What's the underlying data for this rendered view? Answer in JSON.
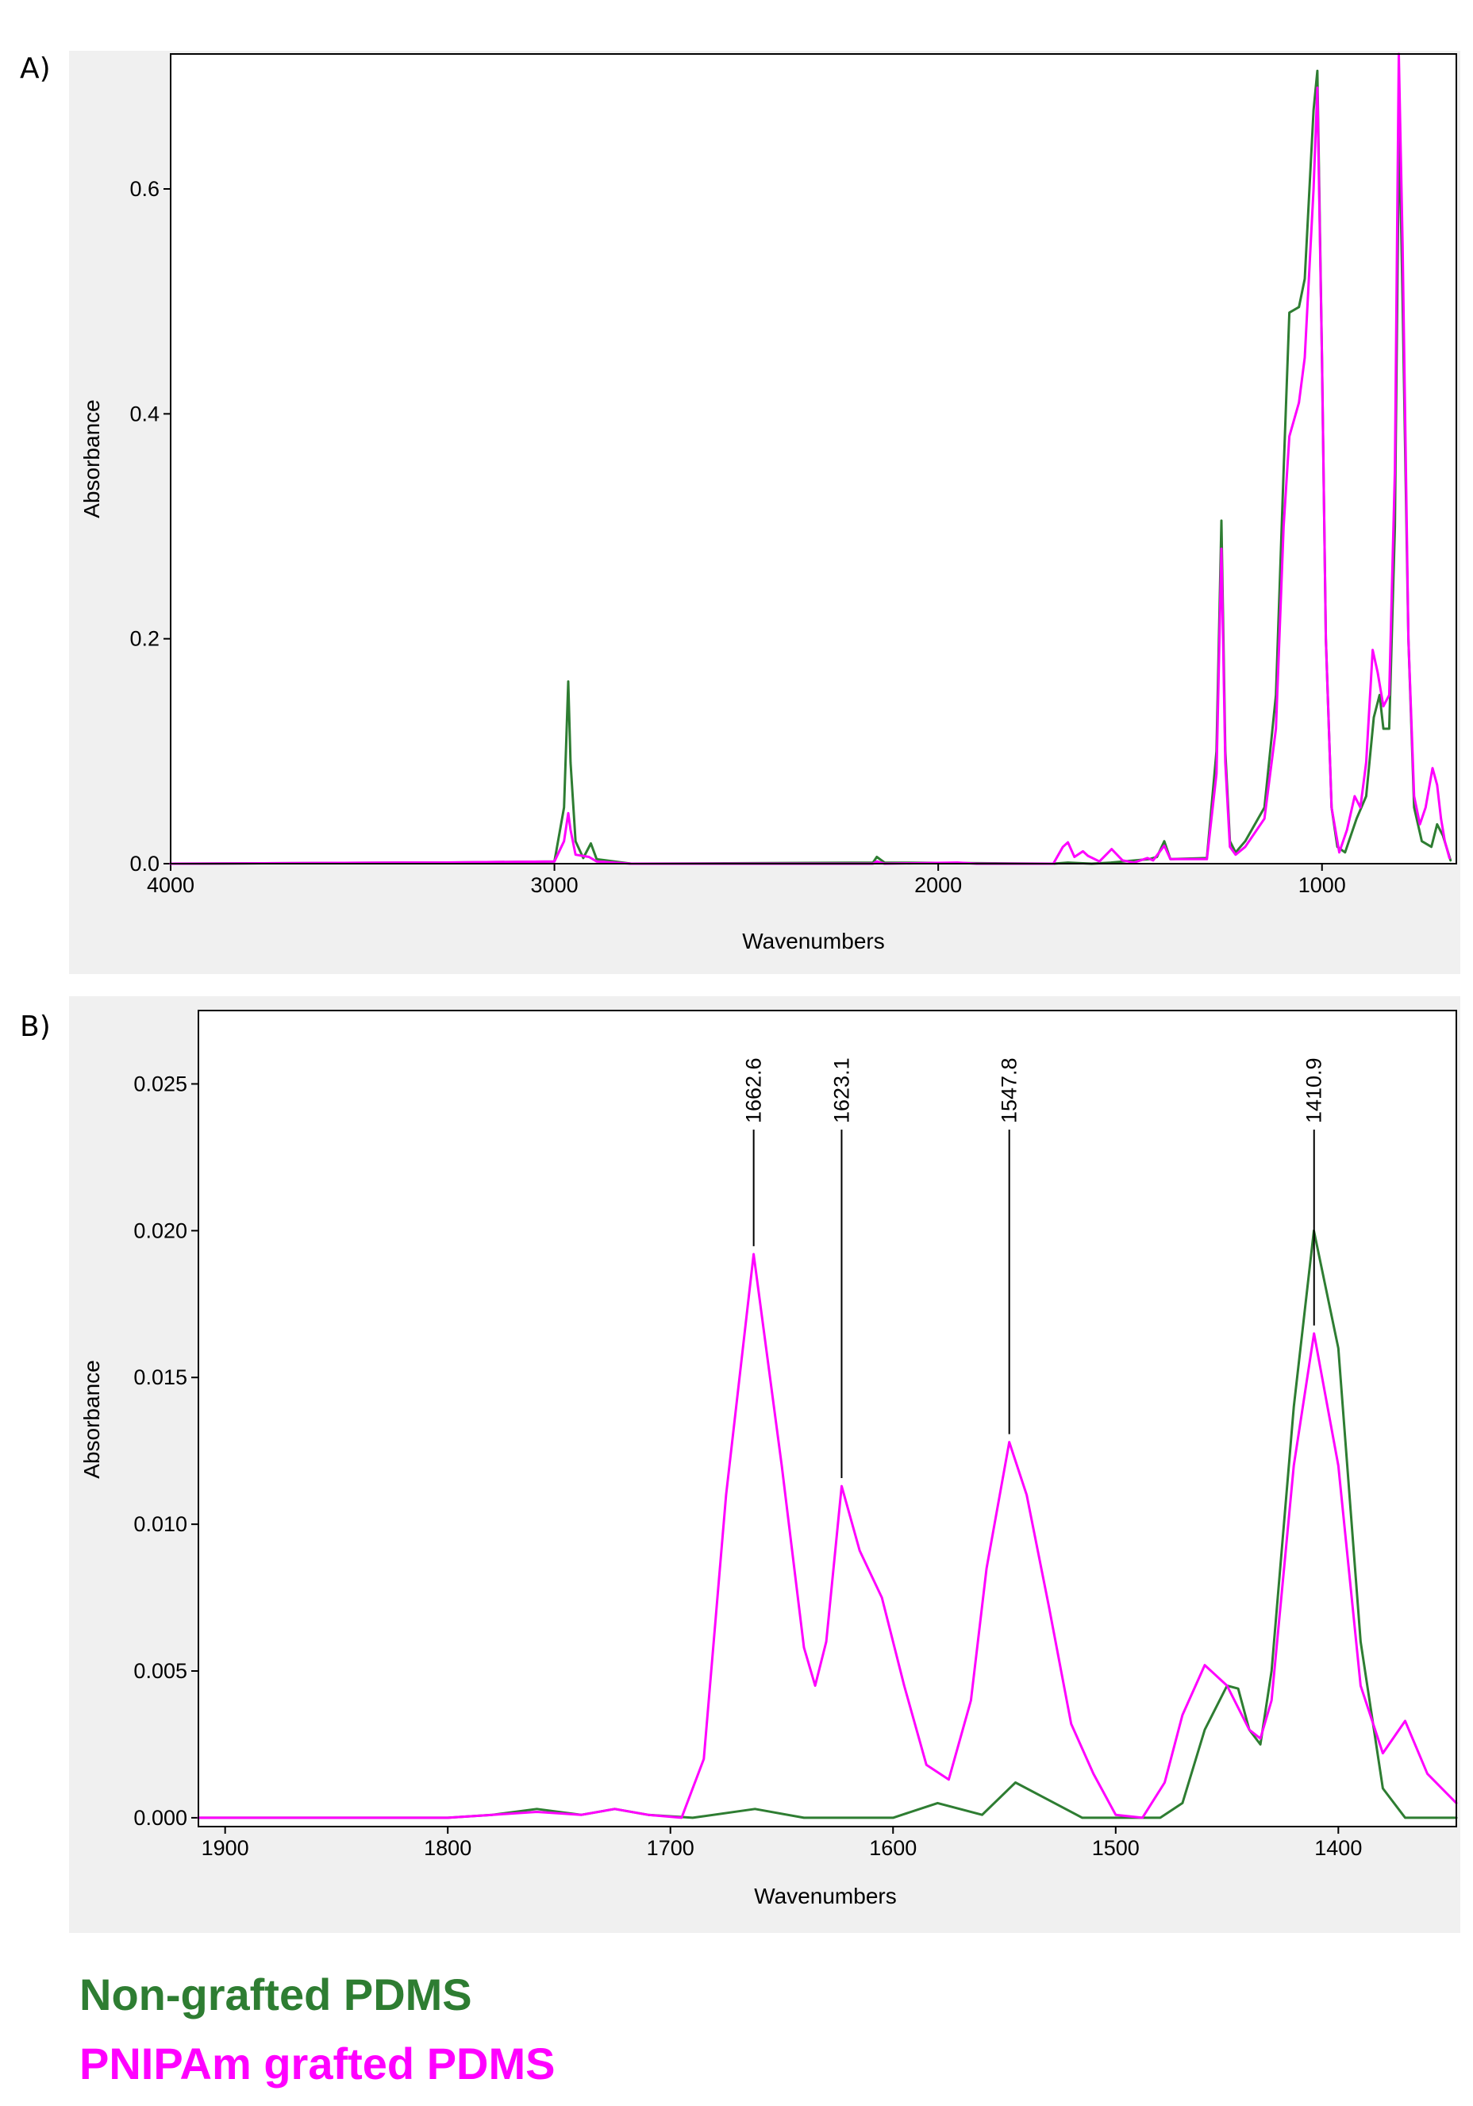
{
  "colors": {
    "non_grafted": "#2e7d32",
    "grafted": "#ff00ff",
    "panel_bg": "#f0f0f0",
    "plot_bg": "#ffffff"
  },
  "legend": {
    "series1": "Non-grafted PDMS",
    "series2": "PNIPAm grafted PDMS"
  },
  "chart_data": [
    {
      "panel": "A)",
      "type": "line",
      "xlabel": "Wavenumbers",
      "ylabel": "Absorbance",
      "xlim": [
        4000,
        650
      ],
      "ylim": [
        0,
        0.72
      ],
      "x_reversed": true,
      "xticks": [
        "4000",
        "3000",
        "2000",
        "1000"
      ],
      "xtick_values": [
        4000,
        3000,
        2000,
        1000
      ],
      "yticks": [
        "0.0",
        "0.2",
        "0.4",
        "0.6"
      ],
      "ytick_values": [
        0,
        0.2,
        0.4,
        0.6
      ],
      "series": [
        {
          "name": "Non-grafted PDMS",
          "points": [
            [
              4000,
              0
            ],
            [
              3360,
              0.001
            ],
            [
              3300,
              0.001
            ],
            [
              3000,
              0.002
            ],
            [
              2975,
              0.05
            ],
            [
              2964,
              0.162
            ],
            [
              2958,
              0.09
            ],
            [
              2945,
              0.02
            ],
            [
              2925,
              0.005
            ],
            [
              2905,
              0.018
            ],
            [
              2890,
              0.004
            ],
            [
              2800,
              0
            ],
            [
              2170,
              0.001
            ],
            [
              2160,
              0.006
            ],
            [
              2140,
              0.001
            ],
            [
              1700,
              0
            ],
            [
              1662,
              0.001
            ],
            [
              1600,
              0
            ],
            [
              1550,
              0.001
            ],
            [
              1450,
              0.004
            ],
            [
              1430,
              0.006
            ],
            [
              1411,
              0.02
            ],
            [
              1395,
              0.004
            ],
            [
              1300,
              0.005
            ],
            [
              1275,
              0.1
            ],
            [
              1262,
              0.305
            ],
            [
              1252,
              0.1
            ],
            [
              1240,
              0.02
            ],
            [
              1225,
              0.01
            ],
            [
              1200,
              0.02
            ],
            [
              1150,
              0.05
            ],
            [
              1120,
              0.15
            ],
            [
              1100,
              0.35
            ],
            [
              1085,
              0.49
            ],
            [
              1060,
              0.495
            ],
            [
              1045,
              0.52
            ],
            [
              1022,
              0.67
            ],
            [
              1012,
              0.705
            ],
            [
              1000,
              0.45
            ],
            [
              990,
              0.2
            ],
            [
              975,
              0.05
            ],
            [
              960,
              0.015
            ],
            [
              940,
              0.01
            ],
            [
              910,
              0.04
            ],
            [
              885,
              0.06
            ],
            [
              865,
              0.13
            ],
            [
              850,
              0.15
            ],
            [
              840,
              0.12
            ],
            [
              825,
              0.12
            ],
            [
              810,
              0.3
            ],
            [
              799,
              0.66
            ],
            [
              790,
              0.5
            ],
            [
              775,
              0.2
            ],
            [
              760,
              0.05
            ],
            [
              740,
              0.02
            ],
            [
              715,
              0.015
            ],
            [
              700,
              0.035
            ],
            [
              685,
              0.025
            ],
            [
              665,
              0.003
            ]
          ]
        },
        {
          "name": "PNIPAm grafted PDMS",
          "points": [
            [
              4000,
              0
            ],
            [
              3360,
              0.001
            ],
            [
              3300,
              0.001
            ],
            [
              3000,
              0.002
            ],
            [
              2975,
              0.02
            ],
            [
              2964,
              0.045
            ],
            [
              2958,
              0.03
            ],
            [
              2945,
              0.008
            ],
            [
              2910,
              0.006
            ],
            [
              2890,
              0.002
            ],
            [
              2800,
              0
            ],
            [
              2170,
              0
            ],
            [
              2160,
              0.002
            ],
            [
              2140,
              0
            ],
            [
              1950,
              0.001
            ],
            [
              1900,
              0
            ],
            [
              1700,
              0
            ],
            [
              1675,
              0.015
            ],
            [
              1662,
              0.019
            ],
            [
              1645,
              0.006
            ],
            [
              1623,
              0.011
            ],
            [
              1610,
              0.007
            ],
            [
              1580,
              0.002
            ],
            [
              1548,
              0.013
            ],
            [
              1520,
              0.003
            ],
            [
              1490,
              0.001
            ],
            [
              1455,
              0.005
            ],
            [
              1440,
              0.003
            ],
            [
              1411,
              0.016
            ],
            [
              1395,
              0.004
            ],
            [
              1300,
              0.004
            ],
            [
              1275,
              0.08
            ],
            [
              1262,
              0.28
            ],
            [
              1252,
              0.09
            ],
            [
              1240,
              0.015
            ],
            [
              1225,
              0.008
            ],
            [
              1200,
              0.015
            ],
            [
              1150,
              0.04
            ],
            [
              1120,
              0.12
            ],
            [
              1100,
              0.3
            ],
            [
              1085,
              0.38
            ],
            [
              1060,
              0.41
            ],
            [
              1045,
              0.45
            ],
            [
              1022,
              0.6
            ],
            [
              1012,
              0.69
            ],
            [
              1000,
              0.45
            ],
            [
              990,
              0.2
            ],
            [
              975,
              0.05
            ],
            [
              955,
              0.01
            ],
            [
              935,
              0.03
            ],
            [
              915,
              0.06
            ],
            [
              900,
              0.05
            ],
            [
              885,
              0.09
            ],
            [
              868,
              0.19
            ],
            [
              855,
              0.17
            ],
            [
              840,
              0.14
            ],
            [
              825,
              0.15
            ],
            [
              810,
              0.35
            ],
            [
              800,
              0.72
            ],
            [
              790,
              0.55
            ],
            [
              775,
              0.2
            ],
            [
              760,
              0.06
            ],
            [
              745,
              0.035
            ],
            [
              730,
              0.05
            ],
            [
              712,
              0.085
            ],
            [
              700,
              0.07
            ],
            [
              690,
              0.04
            ],
            [
              680,
              0.02
            ],
            [
              668,
              0.005
            ]
          ]
        }
      ]
    },
    {
      "panel": "B)",
      "type": "line",
      "xlabel": "Wavenumbers",
      "ylabel": "Absorbance",
      "xlim": [
        1912,
        1347
      ],
      "ylim": [
        -0.0003,
        0.0275
      ],
      "x_reversed": true,
      "xticks": [
        "1900",
        "1800",
        "1700",
        "1600",
        "1500",
        "1400"
      ],
      "xtick_values": [
        1900,
        1800,
        1700,
        1600,
        1500,
        1400
      ],
      "yticks": [
        "0.000",
        "0.005",
        "0.010",
        "0.015",
        "0.020",
        "0.025"
      ],
      "ytick_values": [
        0,
        0.005,
        0.01,
        0.015,
        0.02,
        0.025
      ],
      "annotations": [
        {
          "label": "1662.6",
          "x": 1662.6,
          "peak": 0.0192
        },
        {
          "label": "1623.1",
          "x": 1623.1,
          "peak": 0.0113
        },
        {
          "label": "1547.8",
          "x": 1547.8,
          "peak": 0.0128
        },
        {
          "label": "1410.9",
          "x": 1410.9,
          "peak": 0.0165
        }
      ],
      "series": [
        {
          "name": "Non-grafted PDMS",
          "points": [
            [
              1912,
              0
            ],
            [
              1800,
              0
            ],
            [
              1780,
              0.0001
            ],
            [
              1760,
              0.0003
            ],
            [
              1740,
              0.0001
            ],
            [
              1725,
              0.0003
            ],
            [
              1710,
              0.0001
            ],
            [
              1690,
              0
            ],
            [
              1662,
              0.0003
            ],
            [
              1640,
              0
            ],
            [
              1600,
              0
            ],
            [
              1580,
              0.0005
            ],
            [
              1560,
              0.0001
            ],
            [
              1545,
              0.0012
            ],
            [
              1530,
              0.0006
            ],
            [
              1515,
              0
            ],
            [
              1480,
              0
            ],
            [
              1470,
              0.0005
            ],
            [
              1460,
              0.003
            ],
            [
              1450,
              0.0045
            ],
            [
              1445,
              0.0044
            ],
            [
              1440,
              0.003
            ],
            [
              1435,
              0.0025
            ],
            [
              1430,
              0.005
            ],
            [
              1420,
              0.014
            ],
            [
              1411,
              0.02
            ],
            [
              1400,
              0.016
            ],
            [
              1390,
              0.006
            ],
            [
              1380,
              0.001
            ],
            [
              1370,
              0
            ],
            [
              1347,
              0
            ]
          ]
        },
        {
          "name": "PNIPAm grafted PDMS",
          "points": [
            [
              1912,
              0
            ],
            [
              1800,
              0
            ],
            [
              1780,
              0.0001
            ],
            [
              1760,
              0.0002
            ],
            [
              1740,
              0.0001
            ],
            [
              1725,
              0.0003
            ],
            [
              1710,
              0.0001
            ],
            [
              1695,
              0
            ],
            [
              1685,
              0.002
            ],
            [
              1675,
              0.011
            ],
            [
              1662.6,
              0.0192
            ],
            [
              1650,
              0.012
            ],
            [
              1640,
              0.0058
            ],
            [
              1635,
              0.0045
            ],
            [
              1630,
              0.006
            ],
            [
              1623.1,
              0.0113
            ],
            [
              1615,
              0.0091
            ],
            [
              1605,
              0.0075
            ],
            [
              1595,
              0.0045
            ],
            [
              1585,
              0.0018
            ],
            [
              1575,
              0.0013
            ],
            [
              1565,
              0.004
            ],
            [
              1558,
              0.0085
            ],
            [
              1547.8,
              0.0128
            ],
            [
              1540,
              0.011
            ],
            [
              1530,
              0.0072
            ],
            [
              1520,
              0.0032
            ],
            [
              1510,
              0.0015
            ],
            [
              1500,
              0.0001
            ],
            [
              1488,
              0
            ],
            [
              1478,
              0.0012
            ],
            [
              1470,
              0.0035
            ],
            [
              1460,
              0.0052
            ],
            [
              1450,
              0.0045
            ],
            [
              1440,
              0.003
            ],
            [
              1435,
              0.0027
            ],
            [
              1430,
              0.004
            ],
            [
              1420,
              0.012
            ],
            [
              1410.9,
              0.0165
            ],
            [
              1400,
              0.012
            ],
            [
              1390,
              0.0045
            ],
            [
              1380,
              0.0022
            ],
            [
              1370,
              0.0033
            ],
            [
              1360,
              0.0015
            ],
            [
              1347,
              0.0005
            ]
          ]
        }
      ]
    }
  ]
}
